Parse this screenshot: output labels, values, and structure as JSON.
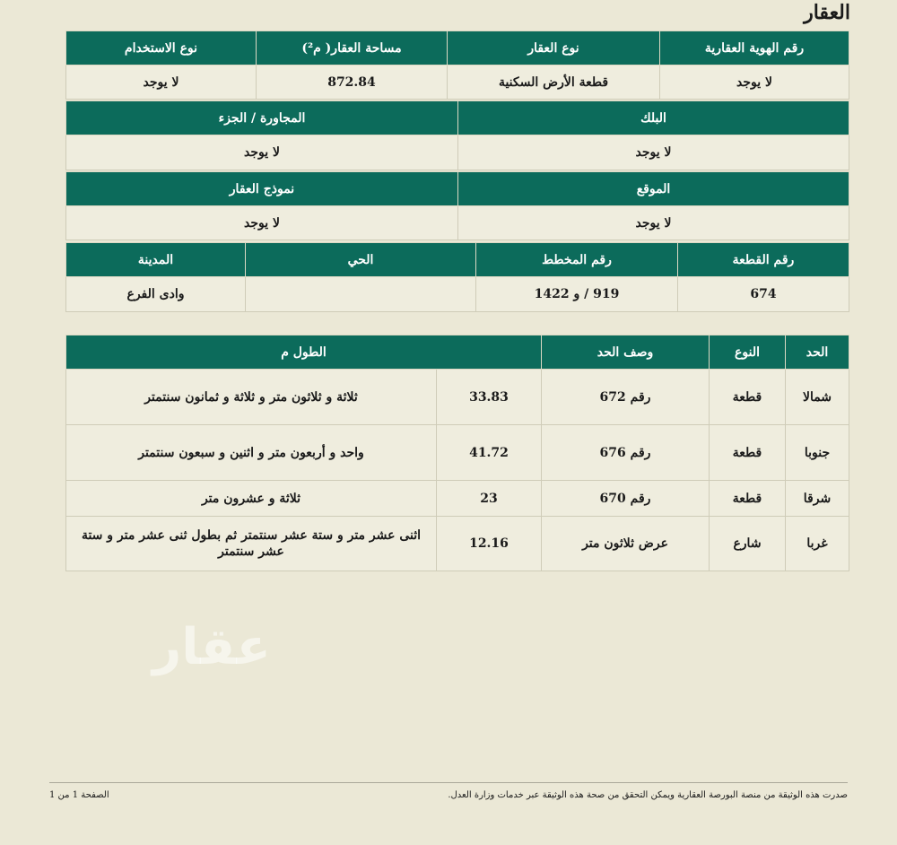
{
  "title": "العقار",
  "property_table": {
    "headers": [
      "رقم الهوية العقارية",
      "نوع العقار",
      "مساحة العقار( م²)",
      "نوع الاستخدام"
    ],
    "values": [
      "لا يوجد",
      "قطعة الأرض السكنية",
      "872.84",
      "لا يوجد"
    ]
  },
  "block_table": {
    "headers": [
      "البلك",
      "المجاورة / الجزء"
    ],
    "values": [
      "لا يوجد",
      "لا يوجد"
    ]
  },
  "location_table": {
    "headers": [
      "الموقع",
      "نموذج العقار"
    ],
    "values": [
      "لا يوجد",
      "لا يوجد"
    ]
  },
  "plot_table": {
    "headers": [
      "رقم القطعة",
      "رقم المخطط",
      "الحي",
      "المدينة"
    ],
    "values": [
      "674",
      "919 / و 1422",
      "",
      "وادى الفرع"
    ]
  },
  "boundaries": {
    "headers": [
      "الحد",
      "النوع",
      "وصف الحد",
      "الطول م"
    ],
    "rows": [
      {
        "side": "شمالا",
        "type": "قطعة",
        "desc": "رقم 672",
        "length": "33.83",
        "words": "ثلاثة و ثلاثون متر و ثلاثة و ثمانون سنتمتر"
      },
      {
        "side": "جنوبا",
        "type": "قطعة",
        "desc": "رقم 676",
        "length": "41.72",
        "words": "واحد و أربعون متر و اثنين و سبعون سنتمتر"
      },
      {
        "side": "شرقا",
        "type": "قطعة",
        "desc": "رقم 670",
        "length": "23",
        "words": "ثلاثة و عشرون متر"
      },
      {
        "side": "غربا",
        "type": "شارع",
        "desc": "عرض ثلاثون متر",
        "length": "12.16",
        "words": "اثنى عشر متر و ستة عشر سنتمتر ثم بطول ثنى عشر متر و ستة عشر سنتمتر"
      }
    ]
  },
  "watermark": "عقار",
  "footer": {
    "note": "صدرت هذه الوثيقة من منصة البورصة العقارية ويمكن التحقق من صحة هذه الوثيقة عبر خدمات وزارة العدل.",
    "page": "الصفحة 1 من 1"
  },
  "colors": {
    "header": "#0c6b5b",
    "background": "#ebe8d6"
  }
}
